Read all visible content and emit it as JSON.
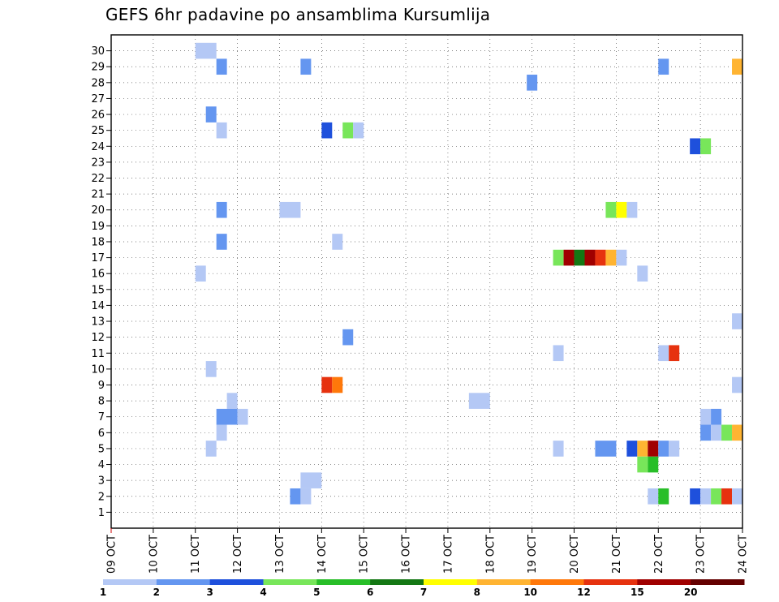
{
  "chart_data": {
    "type": "heatmap",
    "title": "GEFS 6hr padavine po ansamblima Kursumlija",
    "x_tick_labels": [
      "09 OCT",
      "10 OCT",
      "11 OCT",
      "12 OCT",
      "13 OCT",
      "14 OCT",
      "15 OCT",
      "16 OCT",
      "17 OCT",
      "18 OCT",
      "19 OCT",
      "20 OCT",
      "21 OCT",
      "22 OCT",
      "23 OCT",
      "24 OCT"
    ],
    "y_tick_labels": [
      "1",
      "2",
      "3",
      "4",
      "5",
      "6",
      "7",
      "8",
      "9",
      "10",
      "11",
      "12",
      "13",
      "14",
      "15",
      "16",
      "17",
      "18",
      "19",
      "20",
      "21",
      "22",
      "23",
      "24",
      "25",
      "26",
      "27",
      "28",
      "29",
      "30"
    ],
    "x_range_days": [
      0,
      15
    ],
    "y_range_members": [
      0,
      31
    ],
    "grid": "dotted",
    "colorbar": {
      "labels": [
        "1",
        "2",
        "3",
        "4",
        "5",
        "6",
        "7",
        "8",
        "10",
        "12",
        "15",
        "20"
      ],
      "colors": [
        "#b4c8f5",
        "#6496f0",
        "#1e50dc",
        "#78e65a",
        "#28be28",
        "#147814",
        "#ffff00",
        "#ffb432",
        "#ff780a",
        "#e6320f",
        "#a00000",
        "#640000"
      ]
    },
    "cells": [
      {
        "m": 30,
        "d": 2.25,
        "w": 0.5,
        "c": 1
      },
      {
        "m": 29,
        "d": 2.625,
        "w": 0.25,
        "c": 2
      },
      {
        "m": 29,
        "d": 4.625,
        "w": 0.25,
        "c": 2
      },
      {
        "m": 29,
        "d": 13.125,
        "w": 0.25,
        "c": 2
      },
      {
        "m": 29,
        "d": 14.875,
        "w": 0.25,
        "c": 8
      },
      {
        "m": 28,
        "d": 10.0,
        "w": 0.25,
        "c": 2
      },
      {
        "m": 26,
        "d": 2.375,
        "w": 0.25,
        "c": 2
      },
      {
        "m": 25,
        "d": 2.625,
        "w": 0.25,
        "c": 1
      },
      {
        "m": 25,
        "d": 5.125,
        "w": 0.25,
        "c": 3
      },
      {
        "m": 25,
        "d": 5.625,
        "w": 0.25,
        "c": 4
      },
      {
        "m": 25,
        "d": 5.875,
        "w": 0.25,
        "c": 1
      },
      {
        "m": 24,
        "d": 13.875,
        "w": 0.25,
        "c": 3
      },
      {
        "m": 24,
        "d": 14.125,
        "w": 0.25,
        "c": 4
      },
      {
        "m": 20,
        "d": 2.625,
        "w": 0.25,
        "c": 2
      },
      {
        "m": 20,
        "d": 4.25,
        "w": 0.5,
        "c": 1
      },
      {
        "m": 20,
        "d": 11.875,
        "w": 0.25,
        "c": 4
      },
      {
        "m": 20,
        "d": 12.125,
        "w": 0.25,
        "c": 7
      },
      {
        "m": 20,
        "d": 12.375,
        "w": 0.25,
        "c": 1
      },
      {
        "m": 18,
        "d": 2.625,
        "w": 0.25,
        "c": 2
      },
      {
        "m": 18,
        "d": 5.375,
        "w": 0.25,
        "c": 1
      },
      {
        "m": 17,
        "d": 10.625,
        "w": 0.25,
        "c": 4
      },
      {
        "m": 17,
        "d": 10.875,
        "w": 0.25,
        "c": 11
      },
      {
        "m": 17,
        "d": 11.125,
        "w": 0.25,
        "c": 6
      },
      {
        "m": 17,
        "d": 11.375,
        "w": 0.25,
        "c": 11
      },
      {
        "m": 17,
        "d": 11.625,
        "w": 0.25,
        "c": 10
      },
      {
        "m": 17,
        "d": 11.875,
        "w": 0.25,
        "c": 8
      },
      {
        "m": 17,
        "d": 12.125,
        "w": 0.25,
        "c": 1
      },
      {
        "m": 16,
        "d": 2.125,
        "w": 0.25,
        "c": 1
      },
      {
        "m": 16,
        "d": 12.625,
        "w": 0.25,
        "c": 1
      },
      {
        "m": 13,
        "d": 14.875,
        "w": 0.25,
        "c": 1
      },
      {
        "m": 12,
        "d": 5.625,
        "w": 0.25,
        "c": 2
      },
      {
        "m": 11,
        "d": 10.625,
        "w": 0.25,
        "c": 1
      },
      {
        "m": 11,
        "d": 13.125,
        "w": 0.25,
        "c": 1
      },
      {
        "m": 11,
        "d": 13.375,
        "w": 0.25,
        "c": 10
      },
      {
        "m": 10,
        "d": 2.375,
        "w": 0.25,
        "c": 1
      },
      {
        "m": 9,
        "d": 5.125,
        "w": 0.25,
        "c": 10
      },
      {
        "m": 9,
        "d": 5.375,
        "w": 0.25,
        "c": 9
      },
      {
        "m": 9,
        "d": 14.875,
        "w": 0.25,
        "c": 1
      },
      {
        "m": 8,
        "d": 2.875,
        "w": 0.25,
        "c": 1
      },
      {
        "m": 8,
        "d": 8.75,
        "w": 0.5,
        "c": 1
      },
      {
        "m": 7,
        "d": 2.75,
        "w": 0.5,
        "c": 2
      },
      {
        "m": 7,
        "d": 3.125,
        "w": 0.25,
        "c": 1
      },
      {
        "m": 7,
        "d": 14.125,
        "w": 0.25,
        "c": 1
      },
      {
        "m": 7,
        "d": 14.375,
        "w": 0.25,
        "c": 2
      },
      {
        "m": 6,
        "d": 2.625,
        "w": 0.25,
        "c": 1
      },
      {
        "m": 6,
        "d": 14.125,
        "w": 0.25,
        "c": 2
      },
      {
        "m": 6,
        "d": 14.375,
        "w": 0.25,
        "c": 1
      },
      {
        "m": 6,
        "d": 14.625,
        "w": 0.25,
        "c": 4
      },
      {
        "m": 6,
        "d": 14.875,
        "w": 0.25,
        "c": 8
      },
      {
        "m": 5,
        "d": 2.375,
        "w": 0.25,
        "c": 1
      },
      {
        "m": 5,
        "d": 10.625,
        "w": 0.25,
        "c": 1
      },
      {
        "m": 5,
        "d": 11.75,
        "w": 0.5,
        "c": 2
      },
      {
        "m": 5,
        "d": 12.375,
        "w": 0.25,
        "c": 3
      },
      {
        "m": 5,
        "d": 12.625,
        "w": 0.25,
        "c": 8
      },
      {
        "m": 5,
        "d": 12.875,
        "w": 0.25,
        "c": 11
      },
      {
        "m": 5,
        "d": 13.125,
        "w": 0.25,
        "c": 2
      },
      {
        "m": 5,
        "d": 13.375,
        "w": 0.25,
        "c": 1
      },
      {
        "m": 4,
        "d": 12.625,
        "w": 0.25,
        "c": 4
      },
      {
        "m": 4,
        "d": 12.875,
        "w": 0.25,
        "c": 5
      },
      {
        "m": 3,
        "d": 4.75,
        "w": 0.5,
        "c": 1
      },
      {
        "m": 2,
        "d": 4.375,
        "w": 0.25,
        "c": 2
      },
      {
        "m": 2,
        "d": 4.625,
        "w": 0.25,
        "c": 1
      },
      {
        "m": 2,
        "d": 12.875,
        "w": 0.25,
        "c": 1
      },
      {
        "m": 2,
        "d": 13.125,
        "w": 0.25,
        "c": 5
      },
      {
        "m": 2,
        "d": 13.875,
        "w": 0.25,
        "c": 3
      },
      {
        "m": 2,
        "d": 14.125,
        "w": 0.25,
        "c": 1
      },
      {
        "m": 2,
        "d": 14.375,
        "w": 0.25,
        "c": 4
      },
      {
        "m": 2,
        "d": 14.625,
        "w": 0.25,
        "c": 10
      },
      {
        "m": 2,
        "d": 14.875,
        "w": 0.25,
        "c": 1
      }
    ]
  }
}
